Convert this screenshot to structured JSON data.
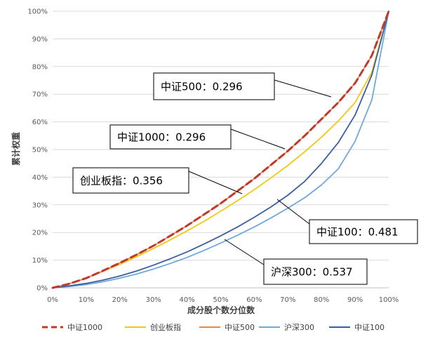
{
  "chart_data": {
    "type": "line",
    "title": "",
    "xlabel": "成分股个数分位数",
    "ylabel": "累计权重",
    "xlim": [
      0,
      100
    ],
    "ylim": [
      0,
      100
    ],
    "x_ticks": [
      "0%",
      "10%",
      "20%",
      "30%",
      "40%",
      "50%",
      "60%",
      "70%",
      "80%",
      "90%",
      "100%"
    ],
    "y_ticks": [
      "0%",
      "10%",
      "20%",
      "30%",
      "40%",
      "50%",
      "60%",
      "70%",
      "80%",
      "90%",
      "100%"
    ],
    "grid": "horizontal",
    "legend_position": "bottom",
    "x": [
      0,
      5,
      10,
      15,
      20,
      25,
      30,
      35,
      40,
      45,
      50,
      55,
      60,
      65,
      70,
      75,
      80,
      85,
      90,
      95,
      100
    ],
    "series": [
      {
        "name": "中证1000",
        "color": "#c0392b",
        "dashed": true,
        "values": [
          0,
          1.5,
          3.5,
          6.2,
          9.0,
          12.0,
          15.2,
          18.8,
          22.5,
          26.5,
          30.5,
          35.0,
          39.5,
          44.5,
          49.5,
          55.0,
          61.0,
          67.0,
          74.0,
          84.0,
          100
        ]
      },
      {
        "name": "创业板指",
        "color": "#f2c811",
        "dashed": false,
        "values": [
          0,
          1.5,
          3.5,
          6.0,
          8.5,
          11.3,
          14.2,
          17.3,
          20.6,
          24.0,
          27.7,
          31.5,
          35.5,
          39.8,
          44.3,
          49.2,
          54.5,
          60.3,
          67.0,
          78.0,
          100
        ]
      },
      {
        "name": "中证500",
        "color": "#e8894a",
        "dashed": false,
        "values": [
          0,
          1.5,
          3.5,
          6.1,
          9.0,
          12.0,
          15.2,
          18.8,
          22.5,
          26.5,
          30.5,
          35.0,
          39.5,
          44.5,
          49.5,
          55.0,
          61.0,
          67.0,
          74.0,
          84.0,
          100
        ]
      },
      {
        "name": "沪深300",
        "color": "#6fa8dc",
        "dashed": false,
        "values": [
          0,
          0.5,
          1.2,
          2.2,
          3.5,
          5.0,
          6.8,
          8.8,
          11.0,
          13.5,
          16.2,
          19.0,
          22.0,
          25.3,
          28.8,
          32.6,
          37.2,
          43.0,
          53.0,
          68.0,
          100
        ]
      },
      {
        "name": "中证100",
        "color": "#3a5fa0",
        "dashed": false,
        "values": [
          0,
          0.7,
          1.6,
          2.8,
          4.3,
          6.1,
          8.2,
          10.5,
          13.0,
          15.8,
          18.8,
          22.0,
          25.5,
          29.3,
          33.5,
          38.5,
          45.0,
          52.5,
          62.5,
          77.0,
          100
        ]
      }
    ],
    "annotations": [
      {
        "id": "ann-zz500",
        "text": "中证500：0.296",
        "series": "中证500",
        "color": "#595959"
      },
      {
        "id": "ann-zz1000",
        "text": "中证1000：0.296",
        "series": "中证1000",
        "color": "#595959"
      },
      {
        "id": "ann-cyb",
        "text": "创业板指：0.356",
        "series": "创业板指",
        "color": "#595959"
      },
      {
        "id": "ann-zz100",
        "text": "中证100：0.481",
        "series": "中证100",
        "color": "#595959"
      },
      {
        "id": "ann-hs300",
        "text": "沪深300：0.537",
        "series": "沪深300",
        "color": "#595959"
      }
    ]
  }
}
